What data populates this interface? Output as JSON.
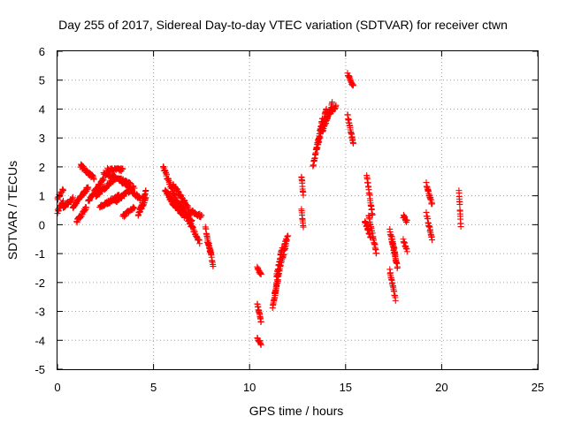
{
  "chart_data": {
    "type": "scatter",
    "title": "Day 255 of 2017, Sidereal Day-to-day VTEC variation (SDTVAR) for receiver ctwn",
    "xlabel": "GPS time / hours",
    "ylabel": "SDTVAR / TECUs",
    "xlim": [
      0,
      25
    ],
    "ylim": [
      -5,
      6
    ],
    "xticks": [
      "0",
      "5",
      "10",
      "15",
      "20",
      "25"
    ],
    "yticks": [
      "-5",
      "-4",
      "-3",
      "-2",
      "-1",
      "0",
      "1",
      "2",
      "3",
      "4",
      "5",
      "6"
    ],
    "grid": true,
    "marker": "+",
    "color": "#ff0000",
    "series": [
      {
        "name": "SDTVAR",
        "segments": [
          [
            0.0,
            0.3,
            0.45,
            0.8
          ],
          [
            0.0,
            0.3,
            0.9,
            1.2
          ],
          [
            0.3,
            0.8,
            0.6,
            0.9
          ],
          [
            0.8,
            1.6,
            0.6,
            1.3
          ],
          [
            1.0,
            1.5,
            0.1,
            0.6
          ],
          [
            1.2,
            1.9,
            2.05,
            1.6
          ],
          [
            1.6,
            2.4,
            0.8,
            1.6
          ],
          [
            2.0,
            3.0,
            1.0,
            1.6
          ],
          [
            2.4,
            3.8,
            1.8,
            1.4
          ],
          [
            2.2,
            3.2,
            0.6,
            1.0
          ],
          [
            3.0,
            4.0,
            0.8,
            1.3
          ],
          [
            3.2,
            4.3,
            1.6,
            0.9
          ],
          [
            2.6,
            3.4,
            1.9,
            1.9
          ],
          [
            3.4,
            4.0,
            0.3,
            0.6
          ],
          [
            4.2,
            4.6,
            0.3,
            1.2
          ],
          [
            4.3,
            4.6,
            0.5,
            0.9
          ],
          [
            5.5,
            6.2,
            2.0,
            0.8
          ],
          [
            5.6,
            6.3,
            1.2,
            0.5
          ],
          [
            5.8,
            6.6,
            0.9,
            0.3
          ],
          [
            6.0,
            6.8,
            1.4,
            0.6
          ],
          [
            6.2,
            7.0,
            0.8,
            0.1
          ],
          [
            6.4,
            7.4,
            0.7,
            -0.6
          ],
          [
            6.8,
            7.5,
            0.5,
            0.3
          ],
          [
            7.7,
            8.1,
            -0.1,
            -1.4
          ],
          [
            7.8,
            8.0,
            -0.6,
            -1.0
          ],
          [
            10.4,
            10.6,
            -1.5,
            -1.7
          ],
          [
            10.4,
            10.6,
            -2.7,
            -3.4
          ],
          [
            10.4,
            10.6,
            -3.9,
            -4.1
          ],
          [
            11.2,
            11.5,
            -2.9,
            -1.8
          ],
          [
            11.3,
            11.6,
            -2.4,
            -1.4
          ],
          [
            11.4,
            11.7,
            -1.8,
            -0.8
          ],
          [
            11.6,
            11.9,
            -1.4,
            -0.7
          ],
          [
            11.8,
            12.0,
            -0.7,
            -0.4
          ],
          [
            12.7,
            12.8,
            1.7,
            1.0
          ],
          [
            12.7,
            12.8,
            0.5,
            -0.1
          ],
          [
            13.3,
            13.8,
            2.0,
            3.7
          ],
          [
            13.5,
            14.0,
            2.6,
            4.0
          ],
          [
            13.8,
            14.3,
            3.2,
            4.2
          ],
          [
            14.0,
            14.5,
            3.7,
            4.1
          ],
          [
            15.1,
            15.4,
            5.2,
            4.8
          ],
          [
            15.1,
            15.4,
            3.8,
            2.8
          ],
          [
            16.1,
            16.4,
            1.7,
            0.3
          ],
          [
            16.2,
            16.6,
            0.3,
            -1.0
          ],
          [
            16.0,
            16.3,
            0.1,
            -0.4
          ],
          [
            17.3,
            17.6,
            -0.2,
            -1.2
          ],
          [
            17.3,
            17.6,
            -1.6,
            -2.6
          ],
          [
            17.4,
            17.7,
            -0.4,
            -1.5
          ],
          [
            18.0,
            18.2,
            -0.5,
            -0.9
          ],
          [
            18.0,
            18.2,
            0.3,
            0.1
          ],
          [
            19.2,
            19.5,
            1.4,
            0.7
          ],
          [
            19.2,
            19.5,
            0.4,
            -0.5
          ],
          [
            20.9,
            21.0,
            1.2,
            -0.1
          ]
        ]
      }
    ]
  }
}
